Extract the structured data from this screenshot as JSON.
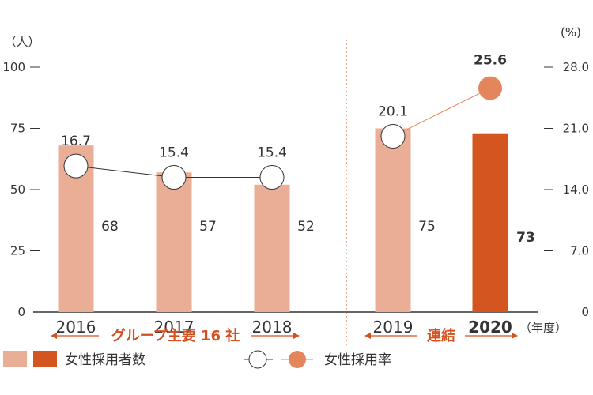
{
  "chart_data": {
    "type": "bar+line",
    "left_axis_unit": "（人）",
    "right_axis_unit": "(%)",
    "left_ticks": [
      "0",
      "25",
      "50",
      "75",
      "100"
    ],
    "right_ticks": [
      "0",
      "7.0",
      "14.0",
      "21.0",
      "28.0"
    ],
    "ylim_left": [
      0,
      100
    ],
    "ylim_right": [
      0,
      28
    ],
    "categories": [
      "2016",
      "2017",
      "2018",
      "2019",
      "2020"
    ],
    "x_suffix": "（年度）",
    "series": [
      {
        "name": "女性採用者数",
        "type": "bar",
        "axis": "left",
        "values": [
          68,
          57,
          52,
          75,
          73
        ]
      },
      {
        "name": "女性採用率",
        "type": "line",
        "axis": "right",
        "values": [
          16.7,
          15.4,
          15.4,
          20.1,
          25.6
        ]
      }
    ],
    "bar_labels": [
      "68",
      "57",
      "52",
      "75",
      "73"
    ],
    "line_labels": [
      "16.7",
      "15.4",
      "15.4",
      "20.1",
      "25.6"
    ],
    "groups": [
      {
        "label": "グループ主要 16 社",
        "categories": [
          "2016",
          "2017",
          "2018"
        ]
      },
      {
        "label": "連結",
        "categories": [
          "2019",
          "2020"
        ]
      }
    ],
    "colors": {
      "bar_light": "#eaae96",
      "bar_dark": "#d4551f",
      "marker_open": "#ffffff",
      "marker_filled": "#e5855c",
      "line_light": "#e5855c",
      "line_dark": "#333333",
      "accent": "#d4501f"
    },
    "legend": {
      "bars_label": "女性採用者数",
      "line_label": "女性採用率"
    }
  }
}
